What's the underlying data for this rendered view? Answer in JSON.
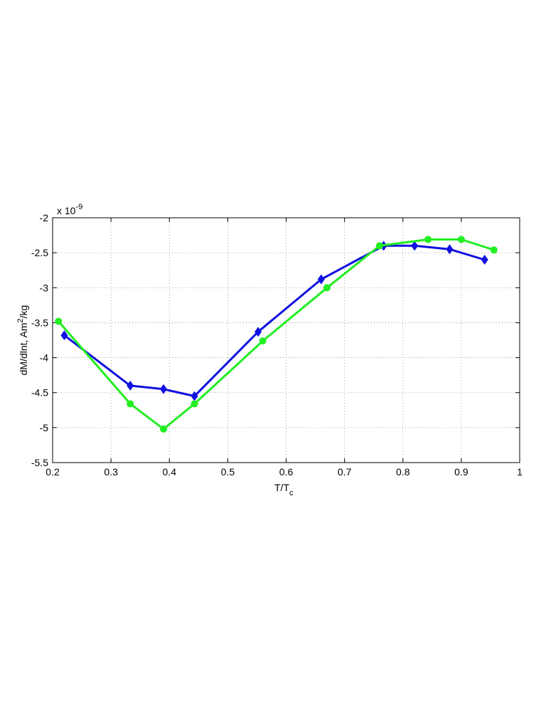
{
  "chart_data": {
    "type": "line",
    "xlabel": "T/T",
    "xlabel_subscript": "c",
    "ylabel": "dM/dlnt, Am",
    "ylabel_superscript": "2",
    "ylabel_suffix": "/kg",
    "exponent_base": "x 10",
    "exponent_power": "-9",
    "xlim": [
      0.2,
      1.0
    ],
    "ylim": [
      -5.5,
      -2.0
    ],
    "grid": true,
    "xticks": [
      "0.2",
      "0.3",
      "0.4",
      "0.5",
      "0.6",
      "0.7",
      "0.8",
      "0.9",
      "1"
    ],
    "yticks": [
      "-2",
      "-2.5",
      "-3",
      "-3.5",
      "-4",
      "-4.5",
      "-5",
      "-5.5"
    ],
    "series": [
      {
        "color": "#1010e0",
        "marker": "diamond",
        "x": [
          0.22,
          0.333,
          0.39,
          0.443,
          0.552,
          0.66,
          0.767,
          0.82,
          0.88,
          0.94
        ],
        "y": [
          -3.68,
          -4.4,
          -4.45,
          -4.55,
          -3.63,
          -2.88,
          -2.4,
          -2.4,
          -2.45,
          -2.6
        ]
      },
      {
        "color": "#22ee22",
        "marker": "circle",
        "x": [
          0.21,
          0.333,
          0.39,
          0.443,
          0.56,
          0.67,
          0.76,
          0.843,
          0.9,
          0.956
        ],
        "y": [
          -3.48,
          -4.66,
          -5.02,
          -4.66,
          -3.76,
          -3.0,
          -2.4,
          -2.31,
          -2.31,
          -2.46
        ]
      }
    ]
  }
}
